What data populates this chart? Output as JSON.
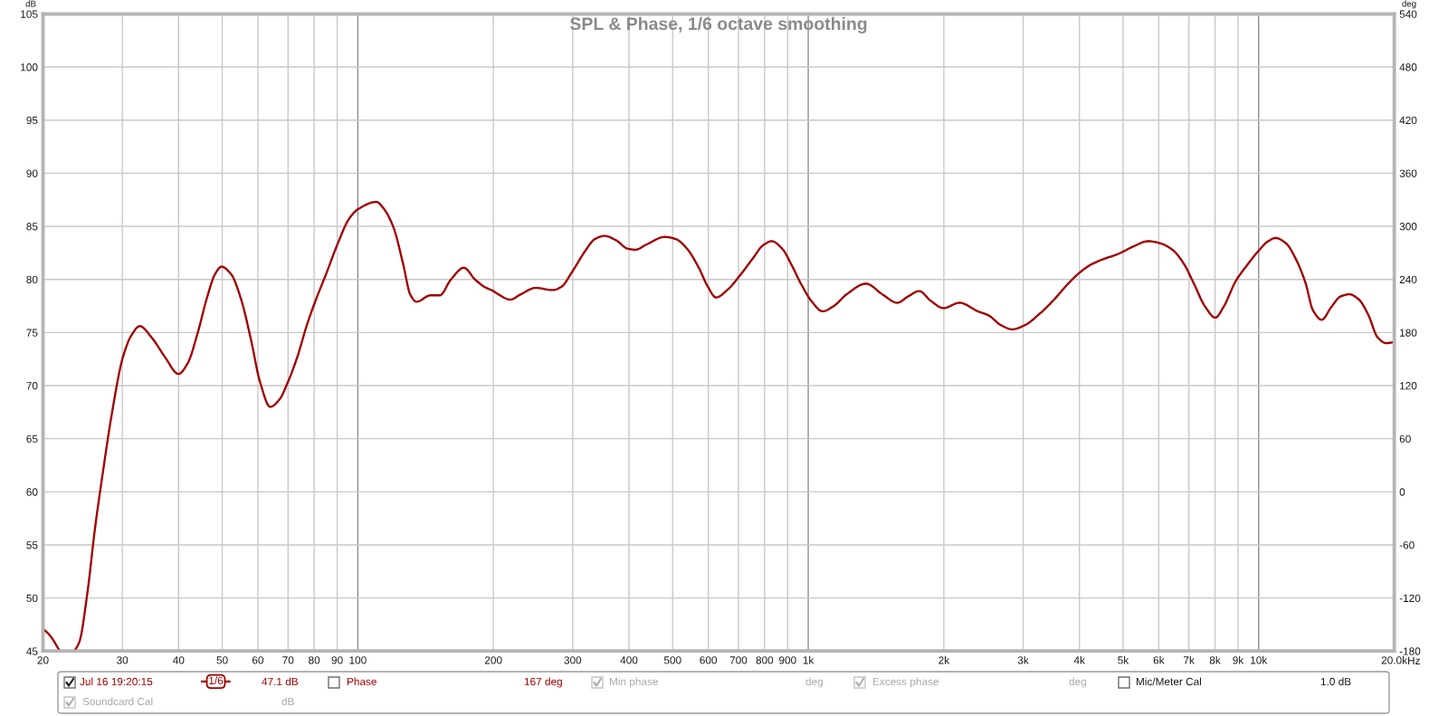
{
  "chart_data": {
    "type": "line",
    "title": "SPL & Phase, 1/6 octave smoothing",
    "xlabel": "Hz",
    "ylabel": "dB",
    "y2label": "deg",
    "x": [
      20,
      20.7,
      21.8,
      22.6,
      23.5,
      24.1,
      25.1,
      26.1,
      27.2,
      28.4,
      30.1,
      31.4,
      32.8,
      34.9,
      37.3,
      40.0,
      41.9,
      44.0,
      46.2,
      48.2,
      49.8,
      52.3,
      55.0,
      57.8,
      60.7,
      63.9,
      67.0,
      69.9,
      73.4,
      77.2,
      80.4,
      85.2,
      90.3,
      95.6,
      100,
      110,
      114,
      120,
      126,
      131,
      135,
      145,
      152,
      161,
      172,
      182,
      191,
      200,
      205,
      218,
      230,
      248,
      271,
      283,
      299,
      320,
      336,
      353,
      374,
      397,
      413,
      438,
      480,
      508,
      538,
      570,
      599,
      624,
      661,
      706,
      754,
      793,
      830,
      875,
      920,
      966,
      1015,
      1076,
      1140,
      1217,
      1344,
      1460,
      1577,
      1666,
      1764,
      1869,
      1997,
      2168,
      2380,
      2517,
      2677,
      2837,
      3028,
      3271,
      3532,
      3757,
      3994,
      4245,
      4514,
      4877,
      5267,
      5685,
      6048,
      6432,
      6840,
      7164,
      7617,
      8014,
      8355,
      8884,
      9447,
      10000,
      10500,
      10900,
      11500,
      12100,
      12700,
      13200,
      13800,
      14500,
      15200,
      15900,
      16700,
      17500,
      18400,
      19200,
      20000
    ],
    "series": [
      {
        "name": "Jul 16 19:20:15",
        "color": "#a00000",
        "values": [
          47.1,
          46.5,
          45.0,
          null,
          45.0,
          45.9,
          50.5,
          56.6,
          62.0,
          67.2,
          72.7,
          74.7,
          75.6,
          74.5,
          72.7,
          71.1,
          72.1,
          74.8,
          78.2,
          80.5,
          81.2,
          80.5,
          78.2,
          74.5,
          70.3,
          68.0,
          68.7,
          70.3,
          72.7,
          75.8,
          77.9,
          80.6,
          83.4,
          85.7,
          86.6,
          87.3,
          86.7,
          84.9,
          81.5,
          78.5,
          77.9,
          78.5,
          78.5,
          80.0,
          81.1,
          80.0,
          79.3,
          78.9,
          78.6,
          78.1,
          78.6,
          79.2,
          79.0,
          79.3,
          80.7,
          82.7,
          83.8,
          84.1,
          83.7,
          82.9,
          82.8,
          83.3,
          84.0,
          83.8,
          82.9,
          81.2,
          79.3,
          78.3,
          79.0,
          80.4,
          82.0,
          83.2,
          83.6,
          82.9,
          81.3,
          79.5,
          78.0,
          77.0,
          77.5,
          78.6,
          79.6,
          78.6,
          77.8,
          78.4,
          78.9,
          78.0,
          77.3,
          77.8,
          77.0,
          76.6,
          75.7,
          75.3,
          75.7,
          76.8,
          78.2,
          79.5,
          80.6,
          81.4,
          81.9,
          82.4,
          83.1,
          83.6,
          83.4,
          82.8,
          81.4,
          79.7,
          77.4,
          76.4,
          77.4,
          79.8,
          81.4,
          82.7,
          83.6,
          83.9,
          83.4,
          81.9,
          79.7,
          77.1,
          76.2,
          77.4,
          78.4,
          78.6,
          78.1,
          76.7,
          74.5,
          74.0,
          74.1
        ]
      }
    ],
    "log": "x",
    "xlim": [
      20,
      20000
    ],
    "xticks": [
      20,
      30,
      40,
      50,
      60,
      70,
      80,
      90,
      100,
      200,
      300,
      400,
      500,
      600,
      700,
      800,
      900,
      {
        "value": 1000,
        "label": "1k"
      },
      {
        "value": 2000,
        "label": "2k"
      },
      {
        "value": 3000,
        "label": "3k"
      },
      {
        "value": 4000,
        "label": "4k"
      },
      {
        "value": 5000,
        "label": "5k"
      },
      {
        "value": 6000,
        "label": "6k"
      },
      {
        "value": 7000,
        "label": "7k"
      },
      {
        "value": 8000,
        "label": "8k"
      },
      {
        "value": 9000,
        "label": "9k"
      },
      {
        "value": 10000,
        "label": "10k"
      },
      {
        "value": 20000,
        "label": "20.0k"
      }
    ],
    "ylim": [
      45,
      105
    ],
    "yticks": [
      45,
      50,
      55,
      60,
      65,
      70,
      75,
      80,
      85,
      90,
      95,
      100,
      105
    ],
    "y2lim": [
      -180,
      540
    ],
    "y2ticks": [
      -180,
      -120,
      -60,
      0,
      60,
      120,
      180,
      240,
      300,
      360,
      420,
      480,
      540
    ],
    "grid": true,
    "legend": "bottom",
    "annotations": [
      "1/6",
      "47.1 dB",
      "Phase",
      "167 deg",
      "Min phase",
      "deg",
      "Excess phase",
      "deg",
      "Mic/Meter Cal",
      "1.0 dB",
      "Soundcard Cal",
      "dB"
    ]
  }
}
